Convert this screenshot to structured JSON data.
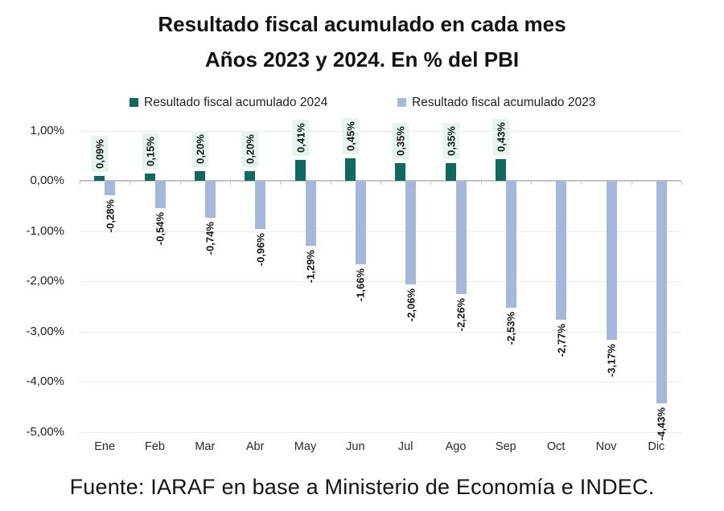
{
  "title": {
    "line1": "Resultado fiscal acumulado en cada mes",
    "line2": "Años 2023 y 2024. En % del PBI"
  },
  "footer": "Fuente: IARAF en base a Ministerio de Economía e INDEC.",
  "colors": {
    "series_2024": "#0e695e",
    "series_2023": "#a3b8db",
    "positive_label_bg": "#e6f4ee",
    "gridline": "#e9e9e9",
    "axis_line": "#c3c3c3"
  },
  "chart_data": {
    "type": "bar",
    "title": "Resultado fiscal acumulado en cada mes. Años 2023 y 2024. En % del PBI",
    "xlabel": "",
    "ylabel": "",
    "categories": [
      "Ene",
      "Feb",
      "Mar",
      "Abr",
      "May",
      "Jun",
      "Jul",
      "Ago",
      "Sep",
      "Oct",
      "Nov",
      "Dic"
    ],
    "series": [
      {
        "name": "Resultado fiscal acumulado 2024",
        "color": "#0e695e",
        "values": [
          0.09,
          0.15,
          0.2,
          0.2,
          0.41,
          0.45,
          0.35,
          0.35,
          0.43,
          null,
          null,
          null
        ],
        "labels": [
          "0,09%",
          "0,15%",
          "0,20%",
          "0,20%",
          "0,41%",
          "0,45%",
          "0,35%",
          "0,35%",
          "0,43%",
          null,
          null,
          null
        ]
      },
      {
        "name": "Resultado fiscal acumulado 2023",
        "color": "#a3b8db",
        "values": [
          -0.28,
          -0.54,
          -0.74,
          -0.96,
          -1.29,
          -1.66,
          -2.06,
          -2.26,
          -2.53,
          -2.77,
          -3.17,
          -4.43
        ],
        "labels": [
          "-0,28%",
          "-0,54%",
          "-0,74%",
          "-0,96%",
          "-1,29%",
          "-1,66%",
          "-2,06%",
          "-2,26%",
          "-2,53%",
          "-2,77%",
          "-3,17%",
          "-4,43%"
        ]
      }
    ],
    "ylim": [
      -5.0,
      1.0
    ],
    "yticks": [
      1.0,
      0.0,
      -1.0,
      -2.0,
      -3.0,
      -4.0,
      -5.0
    ],
    "ytick_labels": [
      "1,00%",
      "0,00%",
      "-1,00%",
      "-2,00%",
      "-3,00%",
      "-4,00%",
      "-5,00%"
    ],
    "grid": true,
    "legend_position": "top"
  }
}
